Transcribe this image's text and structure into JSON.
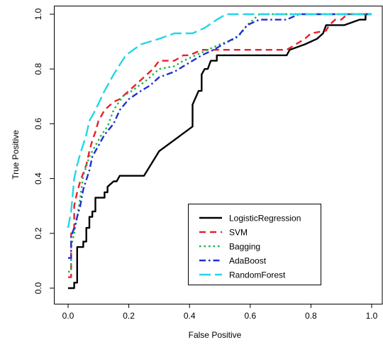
{
  "chart_data": {
    "type": "line",
    "title": "",
    "xlabel": "False Positive",
    "ylabel": "True Positive",
    "xlim": [
      0,
      1
    ],
    "ylim": [
      0,
      1
    ],
    "xticks": [
      "0.0",
      "0.2",
      "0.4",
      "0.6",
      "0.8",
      "1.0"
    ],
    "yticks": [
      "0.0",
      "0.2",
      "0.4",
      "0.6",
      "0.8",
      "1.0"
    ],
    "grid": false,
    "legend_position": "bottom-right",
    "series": [
      {
        "name": "LogisticRegression",
        "color": "#000000",
        "dash": "solid",
        "points": [
          [
            0.0,
            0.0
          ],
          [
            0.02,
            0.0
          ],
          [
            0.02,
            0.02
          ],
          [
            0.03,
            0.02
          ],
          [
            0.03,
            0.04
          ],
          [
            0.03,
            0.15
          ],
          [
            0.05,
            0.15
          ],
          [
            0.05,
            0.17
          ],
          [
            0.06,
            0.17
          ],
          [
            0.06,
            0.22
          ],
          [
            0.07,
            0.22
          ],
          [
            0.07,
            0.26
          ],
          [
            0.08,
            0.26
          ],
          [
            0.08,
            0.28
          ],
          [
            0.09,
            0.28
          ],
          [
            0.09,
            0.33
          ],
          [
            0.12,
            0.33
          ],
          [
            0.12,
            0.35
          ],
          [
            0.13,
            0.35
          ],
          [
            0.13,
            0.37
          ],
          [
            0.15,
            0.39
          ],
          [
            0.16,
            0.39
          ],
          [
            0.17,
            0.41
          ],
          [
            0.25,
            0.41
          ],
          [
            0.3,
            0.5
          ],
          [
            0.41,
            0.59
          ],
          [
            0.41,
            0.67
          ],
          [
            0.43,
            0.72
          ],
          [
            0.44,
            0.72
          ],
          [
            0.44,
            0.78
          ],
          [
            0.45,
            0.8
          ],
          [
            0.46,
            0.8
          ],
          [
            0.47,
            0.83
          ],
          [
            0.49,
            0.83
          ],
          [
            0.49,
            0.85
          ],
          [
            0.72,
            0.85
          ],
          [
            0.73,
            0.87
          ],
          [
            0.78,
            0.89
          ],
          [
            0.82,
            0.91
          ],
          [
            0.84,
            0.93
          ],
          [
            0.85,
            0.96
          ],
          [
            0.91,
            0.96
          ],
          [
            0.96,
            0.98
          ],
          [
            0.98,
            0.98
          ],
          [
            0.98,
            1.0
          ],
          [
            1.0,
            1.0
          ]
        ]
      },
      {
        "name": "SVM",
        "color": "#e8202a",
        "dash": "dashed",
        "points": [
          [
            0.0,
            0.04
          ],
          [
            0.01,
            0.04
          ],
          [
            0.01,
            0.2
          ],
          [
            0.02,
            0.2
          ],
          [
            0.02,
            0.3
          ],
          [
            0.03,
            0.35
          ],
          [
            0.04,
            0.39
          ],
          [
            0.06,
            0.45
          ],
          [
            0.07,
            0.5
          ],
          [
            0.08,
            0.54
          ],
          [
            0.09,
            0.57
          ],
          [
            0.1,
            0.61
          ],
          [
            0.12,
            0.65
          ],
          [
            0.15,
            0.68
          ],
          [
            0.17,
            0.69
          ],
          [
            0.2,
            0.72
          ],
          [
            0.22,
            0.74
          ],
          [
            0.25,
            0.77
          ],
          [
            0.28,
            0.8
          ],
          [
            0.3,
            0.83
          ],
          [
            0.35,
            0.83
          ],
          [
            0.38,
            0.85
          ],
          [
            0.4,
            0.85
          ],
          [
            0.44,
            0.87
          ],
          [
            0.72,
            0.87
          ],
          [
            0.75,
            0.89
          ],
          [
            0.78,
            0.91
          ],
          [
            0.8,
            0.93
          ],
          [
            0.85,
            0.94
          ],
          [
            0.86,
            0.96
          ],
          [
            0.88,
            0.98
          ],
          [
            0.9,
            0.98
          ],
          [
            0.92,
            1.0
          ],
          [
            1.0,
            1.0
          ]
        ]
      },
      {
        "name": "Bagging",
        "color": "#22b24c",
        "dash": "dotted",
        "points": [
          [
            0.0,
            0.06
          ],
          [
            0.01,
            0.06
          ],
          [
            0.01,
            0.15
          ],
          [
            0.02,
            0.2
          ],
          [
            0.03,
            0.26
          ],
          [
            0.04,
            0.33
          ],
          [
            0.05,
            0.41
          ],
          [
            0.07,
            0.48
          ],
          [
            0.09,
            0.52
          ],
          [
            0.11,
            0.56
          ],
          [
            0.13,
            0.59
          ],
          [
            0.15,
            0.65
          ],
          [
            0.18,
            0.7
          ],
          [
            0.21,
            0.72
          ],
          [
            0.26,
            0.76
          ],
          [
            0.3,
            0.8
          ],
          [
            0.35,
            0.81
          ],
          [
            0.38,
            0.83
          ],
          [
            0.42,
            0.85
          ],
          [
            0.46,
            0.87
          ],
          [
            0.5,
            0.89
          ],
          [
            0.55,
            0.91
          ],
          [
            0.57,
            0.93
          ],
          [
            0.59,
            0.96
          ],
          [
            0.61,
            0.98
          ],
          [
            0.63,
            1.0
          ],
          [
            1.0,
            1.0
          ]
        ]
      },
      {
        "name": "AdaBoost",
        "color": "#1f2fd6",
        "dash": "dashdot",
        "points": [
          [
            0.0,
            0.11
          ],
          [
            0.01,
            0.11
          ],
          [
            0.01,
            0.19
          ],
          [
            0.02,
            0.22
          ],
          [
            0.03,
            0.26
          ],
          [
            0.04,
            0.3
          ],
          [
            0.05,
            0.36
          ],
          [
            0.07,
            0.43
          ],
          [
            0.08,
            0.48
          ],
          [
            0.1,
            0.52
          ],
          [
            0.12,
            0.56
          ],
          [
            0.15,
            0.6
          ],
          [
            0.17,
            0.65
          ],
          [
            0.2,
            0.69
          ],
          [
            0.24,
            0.72
          ],
          [
            0.27,
            0.74
          ],
          [
            0.3,
            0.77
          ],
          [
            0.35,
            0.79
          ],
          [
            0.38,
            0.81
          ],
          [
            0.41,
            0.83
          ],
          [
            0.44,
            0.85
          ],
          [
            0.48,
            0.87
          ],
          [
            0.51,
            0.89
          ],
          [
            0.56,
            0.92
          ],
          [
            0.59,
            0.96
          ],
          [
            0.63,
            0.98
          ],
          [
            0.72,
            0.98
          ],
          [
            0.76,
            1.0
          ],
          [
            1.0,
            1.0
          ]
        ]
      },
      {
        "name": "RandomForest",
        "color": "#22d6e8",
        "dash": "longdash",
        "points": [
          [
            0.0,
            0.22
          ],
          [
            0.01,
            0.28
          ],
          [
            0.02,
            0.4
          ],
          [
            0.03,
            0.45
          ],
          [
            0.04,
            0.49
          ],
          [
            0.06,
            0.56
          ],
          [
            0.07,
            0.61
          ],
          [
            0.09,
            0.65
          ],
          [
            0.12,
            0.72
          ],
          [
            0.15,
            0.78
          ],
          [
            0.19,
            0.85
          ],
          [
            0.24,
            0.89
          ],
          [
            0.3,
            0.91
          ],
          [
            0.35,
            0.93
          ],
          [
            0.41,
            0.93
          ],
          [
            0.45,
            0.95
          ],
          [
            0.49,
            0.98
          ],
          [
            0.52,
            1.0
          ],
          [
            1.0,
            1.0
          ]
        ]
      }
    ]
  }
}
